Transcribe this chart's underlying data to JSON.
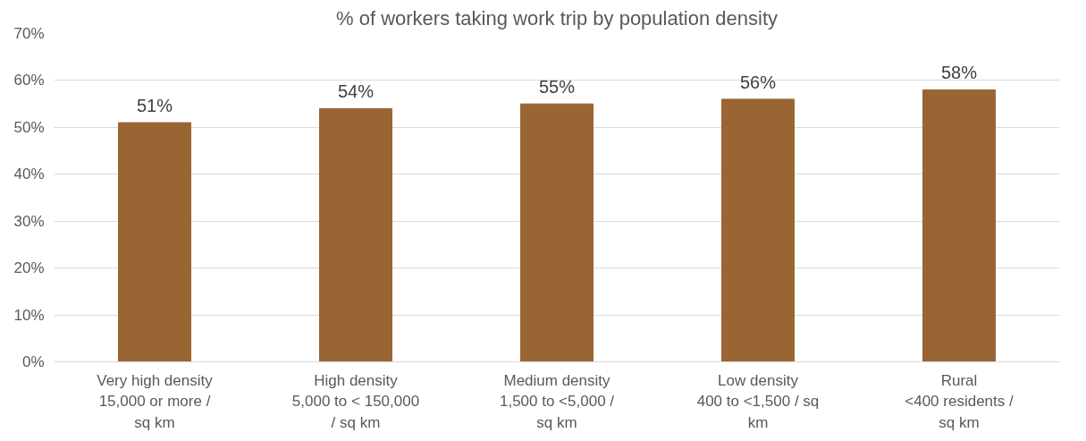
{
  "chart_data": {
    "type": "bar",
    "title": "% of workers taking work trip by population density",
    "categories": [
      "Very high density\n15,000 or more /\nsq km",
      "High density\n5,000 to < 150,000\n/ sq km",
      "Medium density\n1,500 to <5,000 /\nsq km",
      "Low density\n400 to <1,500 / sq\nkm",
      "Rural\n<400 residents /\nsq km"
    ],
    "values": [
      51,
      54,
      55,
      56,
      58
    ],
    "value_labels": [
      "51%",
      "54%",
      "55%",
      "56%",
      "58%"
    ],
    "color": "#996633",
    "ylim": [
      0,
      70
    ],
    "yticks": [
      {
        "value": 0,
        "label": "0%"
      },
      {
        "value": 10,
        "label": "10%"
      },
      {
        "value": 20,
        "label": "20%"
      },
      {
        "value": 30,
        "label": "30%"
      },
      {
        "value": 40,
        "label": "40%"
      },
      {
        "value": 50,
        "label": "50%"
      },
      {
        "value": 60,
        "label": "60%"
      },
      {
        "value": 70,
        "label": "70%"
      }
    ],
    "grid": "y"
  }
}
